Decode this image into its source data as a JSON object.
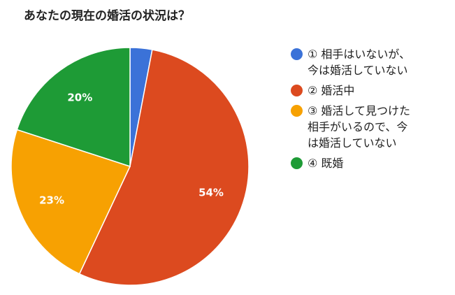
{
  "chart_data": {
    "type": "pie",
    "title": "あなたの現在の婚活の状況は？",
    "slices": [
      {
        "label": "① 相手はいないが、\n今は婚活していない",
        "value": 3,
        "value_label": "",
        "color": "#3b72d8"
      },
      {
        "label": "② 婚活中",
        "value": 54,
        "value_label": "54%",
        "color": "#dc4a1f"
      },
      {
        "label": "③ 婚活して見つけた\n相手がいるので、今\nは婚活していない",
        "value": 23,
        "value_label": "23%",
        "color": "#f7a102"
      },
      {
        "label": "④ 既婚",
        "value": 20,
        "value_label": "20%",
        "color": "#1e9b36"
      }
    ],
    "start": "top",
    "direction": "clockwise",
    "legend_position": "right"
  }
}
